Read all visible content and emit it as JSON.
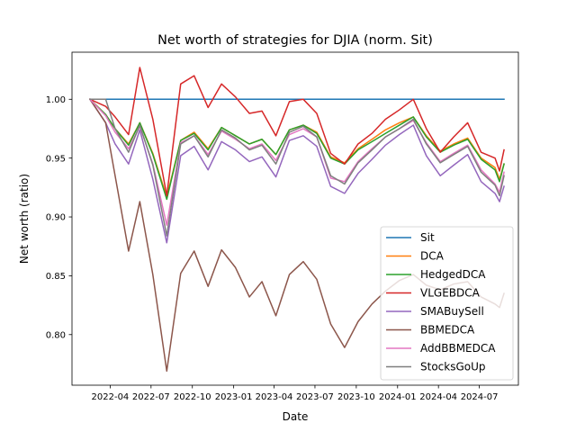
{
  "chart_data": {
    "type": "line",
    "title": "Net worth of strategies for DJIA (norm. Sit)",
    "xlabel": "Date",
    "ylabel": "Net worth (ratio)",
    "xlim": [
      "2022-01-06",
      "2024-09-26"
    ],
    "ylim": [
      0.757,
      1.04
    ],
    "x_ticks": [
      {
        "date": "2022-04-01",
        "label": "2022-04"
      },
      {
        "date": "2022-07-01",
        "label": "2022-07"
      },
      {
        "date": "2022-10-01",
        "label": "2022-10"
      },
      {
        "date": "2023-01-01",
        "label": "2023-01"
      },
      {
        "date": "2023-04-01",
        "label": "2023-04"
      },
      {
        "date": "2023-07-01",
        "label": "2023-07"
      },
      {
        "date": "2023-10-01",
        "label": "2023-10"
      },
      {
        "date": "2024-01-01",
        "label": "2024-01"
      },
      {
        "date": "2024-04-01",
        "label": "2024-04"
      },
      {
        "date": "2024-07-01",
        "label": "2024-07"
      }
    ],
    "y_ticks": [
      {
        "value": 0.8,
        "label": "0.80"
      },
      {
        "value": 0.85,
        "label": "0.85"
      },
      {
        "value": 0.9,
        "label": "0.90"
      },
      {
        "value": 0.95,
        "label": "0.95"
      },
      {
        "value": 1.0,
        "label": "1.00"
      }
    ],
    "grid": false,
    "legend_position": "lower-right",
    "x": [
      "2022-02-15",
      "2022-03-22",
      "2022-04-12",
      "2022-05-12",
      "2022-06-06",
      "2022-07-05",
      "2022-08-05",
      "2022-09-05",
      "2022-10-05",
      "2022-11-05",
      "2022-12-05",
      "2023-01-05",
      "2023-02-05",
      "2023-03-05",
      "2023-04-05",
      "2023-05-05",
      "2023-06-05",
      "2023-07-05",
      "2023-08-05",
      "2023-09-05",
      "2023-10-05",
      "2023-11-05",
      "2023-12-05",
      "2024-01-05",
      "2024-02-05",
      "2024-03-05",
      "2024-04-05",
      "2024-05-05",
      "2024-06-05",
      "2024-07-05",
      "2024-08-05",
      "2024-08-15",
      "2024-08-25"
    ],
    "series": [
      {
        "name": "Sit",
        "color": "#1f77b4",
        "values": [
          1.0,
          1.0,
          1.0,
          1.0,
          1.0,
          1.0,
          1.0,
          1.0,
          1.0,
          1.0,
          1.0,
          1.0,
          1.0,
          1.0,
          1.0,
          1.0,
          1.0,
          1.0,
          1.0,
          1.0,
          1.0,
          1.0,
          1.0,
          1.0,
          1.0,
          1.0,
          1.0,
          1.0,
          1.0,
          1.0,
          1.0,
          1.0,
          1.0
        ]
      },
      {
        "name": "DCA",
        "color": "#ff7f0e",
        "values": [
          1.0,
          0.987,
          0.975,
          0.962,
          0.98,
          0.954,
          0.917,
          0.965,
          0.972,
          0.958,
          0.976,
          0.969,
          0.962,
          0.966,
          0.953,
          0.974,
          0.978,
          0.972,
          0.951,
          0.946,
          0.958,
          0.966,
          0.974,
          0.98,
          0.985,
          0.969,
          0.956,
          0.962,
          0.967,
          0.95,
          0.942,
          0.932,
          0.945
        ]
      },
      {
        "name": "HedgedDCA",
        "color": "#2ca02c",
        "values": [
          1.0,
          0.987,
          0.975,
          0.961,
          0.98,
          0.953,
          0.915,
          0.965,
          0.971,
          0.957,
          0.976,
          0.969,
          0.962,
          0.966,
          0.953,
          0.974,
          0.978,
          0.971,
          0.95,
          0.945,
          0.957,
          0.964,
          0.971,
          0.978,
          0.985,
          0.968,
          0.955,
          0.961,
          0.966,
          0.949,
          0.94,
          0.93,
          0.945
        ]
      },
      {
        "name": "VLGEBDCA",
        "color": "#d62728",
        "values": [
          1.0,
          0.994,
          0.985,
          0.97,
          1.027,
          0.983,
          0.918,
          1.013,
          1.02,
          0.993,
          1.013,
          1.002,
          0.988,
          0.99,
          0.969,
          0.998,
          1.0,
          0.988,
          0.954,
          0.945,
          0.962,
          0.971,
          0.983,
          0.991,
          1.0,
          0.975,
          0.955,
          0.968,
          0.98,
          0.955,
          0.95,
          0.939,
          0.957
        ]
      },
      {
        "name": "SMABuySell",
        "color": "#9467bd",
        "values": [
          1.0,
          0.98,
          0.962,
          0.945,
          0.974,
          0.932,
          0.878,
          0.952,
          0.96,
          0.94,
          0.964,
          0.957,
          0.947,
          0.951,
          0.934,
          0.965,
          0.969,
          0.96,
          0.926,
          0.92,
          0.937,
          0.949,
          0.961,
          0.97,
          0.978,
          0.952,
          0.935,
          0.944,
          0.953,
          0.93,
          0.92,
          0.913,
          0.926
        ]
      },
      {
        "name": "BBMEDCA",
        "color": "#8c564b",
        "values": [
          1.0,
          0.98,
          0.935,
          0.871,
          0.913,
          0.851,
          0.769,
          0.852,
          0.871,
          0.841,
          0.872,
          0.857,
          0.832,
          0.845,
          0.816,
          0.851,
          0.862,
          0.847,
          0.809,
          0.789,
          0.811,
          0.826,
          0.837,
          0.846,
          0.851,
          0.842,
          0.838,
          0.843,
          0.845,
          0.832,
          0.826,
          0.823,
          0.835
        ]
      },
      {
        "name": "AddBBMEDCA",
        "color": "#e377c2",
        "values": [
          1.0,
          0.986,
          0.972,
          0.958,
          0.977,
          0.945,
          0.893,
          0.963,
          0.969,
          0.953,
          0.973,
          0.966,
          0.958,
          0.962,
          0.948,
          0.97,
          0.975,
          0.968,
          0.933,
          0.93,
          0.947,
          0.958,
          0.968,
          0.975,
          0.982,
          0.963,
          0.947,
          0.954,
          0.961,
          0.94,
          0.928,
          0.921,
          0.938
        ]
      },
      {
        "name": "StocksGoUp",
        "color": "#7f7f7f",
        "values": [
          1.0,
          1.0,
          0.975,
          0.955,
          0.978,
          0.944,
          0.884,
          0.962,
          0.969,
          0.951,
          0.974,
          0.967,
          0.957,
          0.961,
          0.945,
          0.972,
          0.977,
          0.968,
          0.935,
          0.928,
          0.946,
          0.957,
          0.968,
          0.975,
          0.983,
          0.962,
          0.946,
          0.953,
          0.96,
          0.938,
          0.927,
          0.918,
          0.935
        ]
      }
    ]
  }
}
